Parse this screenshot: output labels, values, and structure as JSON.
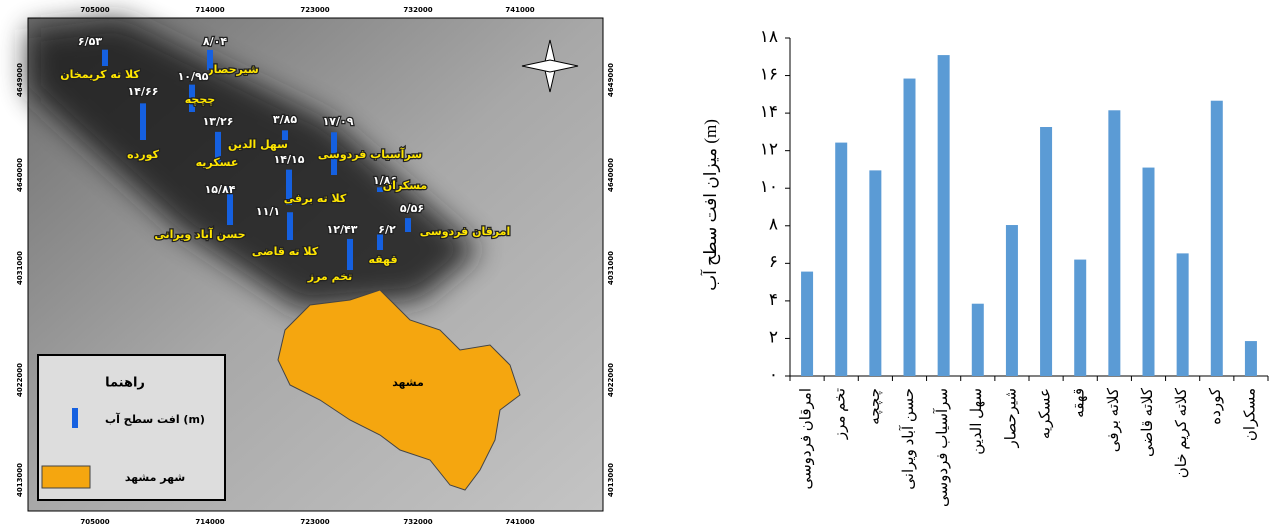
{
  "chart_data": {
    "type": "bar",
    "y_label": "میزان افت سطح آب (m)",
    "categories": [
      "امرقان فردوسی",
      "تخم مرز",
      "چچچه",
      "حسن آباد ویرانی",
      "سرآسیاب فردوسی",
      "سهل الدین",
      "شیرحصار",
      "عسکریه",
      "قهقه",
      "کلاته برفی",
      "کلاته قاضی",
      "کلاته کریم خان",
      "کورده",
      "مسکران"
    ],
    "values": [
      5.56,
      12.43,
      10.95,
      15.84,
      17.09,
      3.85,
      8.04,
      13.26,
      6.2,
      14.15,
      11.1,
      6.53,
      14.66,
      1.86
    ],
    "color": "#5b9bd5",
    "ylim": [
      0,
      18
    ],
    "yticks": [
      {
        "value": 0,
        "label": "۰"
      },
      {
        "value": 2,
        "label": "۲"
      },
      {
        "value": 4,
        "label": "۴"
      },
      {
        "value": 6,
        "label": "۶"
      },
      {
        "value": 8,
        "label": "۸"
      },
      {
        "value": 10,
        "label": "۱۰"
      },
      {
        "value": 12,
        "label": "۱۲"
      },
      {
        "value": 14,
        "label": "۱۴"
      },
      {
        "value": 16,
        "label": "۱۶"
      },
      {
        "value": 18,
        "label": "۱۸"
      }
    ],
    "grid": false
  },
  "map": {
    "xticks": [
      "705000",
      "714000",
      "723000",
      "732000",
      "741000"
    ],
    "yticks": [
      "4649000",
      "4640000",
      "4031000",
      "4022000",
      "4013000"
    ],
    "city": "مشهد",
    "legend": {
      "title": "راهنما",
      "drop": "افت سطح آب (m)",
      "city": "شهر مشهد"
    },
    "points": [
      {
        "name": "کلا ته کریمخان",
        "value": 6.53,
        "value_label": "۶/۵۳"
      },
      {
        "name": "شیرحصار",
        "value": 8.04,
        "value_label": "۸/۰۴"
      },
      {
        "name": "چچچه",
        "value": 10.95,
        "value_label": "۱۰/۹۵"
      },
      {
        "name": "کورده",
        "value": 14.66,
        "value_label": "۱۴/۶۶"
      },
      {
        "name": "عسکریه",
        "value": 13.26,
        "value_label": "۱۳/۲۶"
      },
      {
        "name": "سهل الدین",
        "value": 3.85,
        "value_label": "۳/۸۵"
      },
      {
        "name": "سرآسیاب فردوسی",
        "value": 17.09,
        "value_label": "۱۷/۰۹"
      },
      {
        "name": "کلا ته برفی",
        "value": 14.15,
        "value_label": "۱۴/۱۵"
      },
      {
        "name": "مسکران",
        "value": 1.86,
        "value_label": "۱/۸۶"
      },
      {
        "name": "حسن آباد ویرانی",
        "value": 15.84,
        "value_label": "۱۵/۸۴"
      },
      {
        "name": "کلا ته قاضی",
        "value": 11.1,
        "value_label": "۱۱/۱"
      },
      {
        "name": "امرقان فردوسی",
        "value": 5.56,
        "value_label": "۵/۵۶"
      },
      {
        "name": "تخم مرز",
        "value": 12.43,
        "value_label": "۱۲/۴۳"
      },
      {
        "name": "قهقه",
        "value": 6.2,
        "value_label": "۶/۲"
      }
    ]
  }
}
